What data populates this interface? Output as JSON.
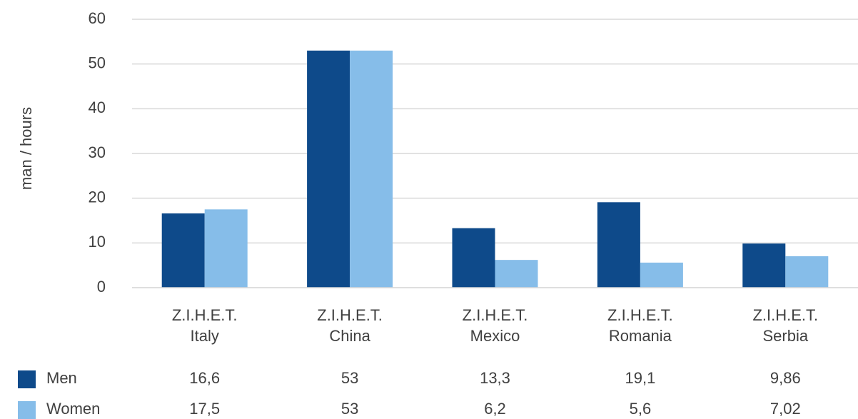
{
  "chart_data": {
    "type": "bar",
    "y_label": "man / hours",
    "categories": [
      "Z.I.H.E.T.\nItaly",
      "Z.I.H.E.T.\nChina",
      "Z.I.H.E.T.\nMexico",
      "Z.I.H.E.T.\nRomania",
      "Z.I.H.E.T.\nSerbia"
    ],
    "series": [
      {
        "name": "Men",
        "color": "#0e4a8a",
        "values": [
          16.6,
          53,
          13.3,
          19.1,
          9.86
        ],
        "value_labels": [
          "16,6",
          "53",
          "13,3",
          "19,1",
          "9,86"
        ]
      },
      {
        "name": "Women",
        "color": "#86bde9",
        "values": [
          17.5,
          53,
          6.2,
          5.6,
          7.02
        ],
        "value_labels": [
          "17,5",
          "53",
          "6,2",
          "5,6",
          "7,02"
        ]
      }
    ],
    "ylim": [
      0,
      60
    ],
    "yticks": [
      0,
      10,
      20,
      30,
      40,
      50,
      60
    ],
    "grid": true
  }
}
